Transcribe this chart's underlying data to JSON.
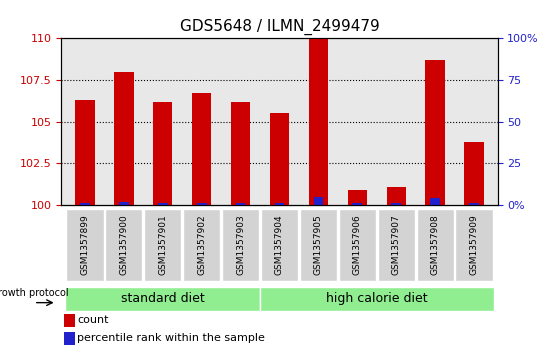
{
  "title": "GDS5648 / ILMN_2499479",
  "samples": [
    "GSM1357899",
    "GSM1357900",
    "GSM1357901",
    "GSM1357902",
    "GSM1357903",
    "GSM1357904",
    "GSM1357905",
    "GSM1357906",
    "GSM1357907",
    "GSM1357908",
    "GSM1357909"
  ],
  "count_values": [
    106.3,
    108.0,
    106.2,
    106.7,
    106.2,
    105.5,
    110.0,
    100.9,
    101.1,
    108.7,
    103.8
  ],
  "percentile_values": [
    1.5,
    2.0,
    1.5,
    1.5,
    1.5,
    1.5,
    5.0,
    1.0,
    1.0,
    4.0,
    1.0
  ],
  "ylim_left": [
    100,
    110
  ],
  "ylim_right": [
    0,
    100
  ],
  "yticks_left": [
    100,
    102.5,
    105,
    107.5,
    110
  ],
  "yticks_right": [
    0,
    25,
    50,
    75,
    100
  ],
  "ytick_labels_left": [
    "100",
    "102.5",
    "105",
    "107.5",
    "110"
  ],
  "ytick_labels_right": [
    "0%",
    "25",
    "50",
    "75",
    "100%"
  ],
  "groups": [
    {
      "label": "standard diet",
      "start": 0,
      "end": 5
    },
    {
      "label": "high calorie diet",
      "start": 5,
      "end": 11
    }
  ],
  "group_label_prefix": "growth protocol",
  "bar_color_count": "#cc0000",
  "bar_color_percentile": "#2222cc",
  "bar_width": 0.5,
  "tick_label_color_left": "#cc0000",
  "tick_label_color_right": "#2222cc",
  "legend_count_label": "count",
  "legend_percentile_label": "percentile rank within the sample",
  "plot_bg_color": "#e8e8e8",
  "sample_box_color": "#d3d3d3",
  "green_band_color": "#90ee90"
}
